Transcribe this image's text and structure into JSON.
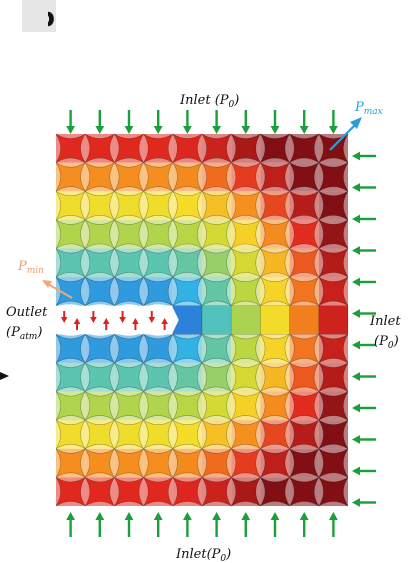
{
  "panel_letter": "b",
  "labels": {
    "inlet_top": "Inlet (P",
    "inlet_top_sub": "0",
    "inlet_top_close": ")",
    "inlet_right": "Inlet",
    "inlet_right2": "(P",
    "inlet_right_sub": "0",
    "inlet_right_close": ")",
    "inlet_bottom": "Inlet(P",
    "inlet_bottom_sub": "0",
    "inlet_bottom_close": ")",
    "outlet": "Outlet",
    "outlet2": "(P",
    "outlet_sub": "atm",
    "outlet_close": ")",
    "pmax": "P",
    "pmax_sub": "max",
    "pmin": "P",
    "pmin_sub": "min"
  },
  "colors": {
    "flow_arrow": "#1aa03a",
    "outlet_arrow": "#e02020",
    "pmax_arrow": "#2a9fd6",
    "pmin_arrow": "#f0a878",
    "pmax_text": "#2a9fd6",
    "pmin_text": "#e8a070"
  },
  "grid": {
    "cols": 10,
    "rows": 13,
    "outlet_row": 6,
    "outlet_cols": 4
  }
}
